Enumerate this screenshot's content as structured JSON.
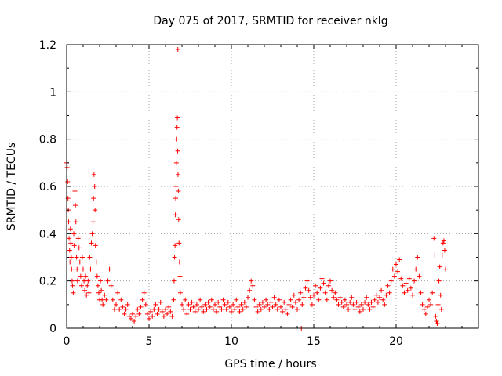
{
  "chart_data": {
    "type": "scatter",
    "title": "Day 075 of 2017, SRMTID for receiver nklg",
    "xlabel": "GPS time / hours",
    "ylabel": "SRMTID / TECUs",
    "xlim": [
      0,
      25
    ],
    "ylim": [
      0,
      1.2
    ],
    "grid": true,
    "marker": "+",
    "color": "#ff0000",
    "x_ticks": [
      0,
      5,
      10,
      15,
      20
    ],
    "x_tick_labels": [
      "0",
      "5",
      "10",
      "15",
      "20"
    ],
    "y_ticks": [
      0,
      0.2,
      0.4,
      0.6,
      0.8,
      1,
      1.2
    ],
    "y_tick_labels": [
      "0",
      "0.2",
      "0.4",
      "0.6",
      "0.8",
      "1",
      "1.2"
    ],
    "series": [
      {
        "name": "SRMTID",
        "points": [
          [
            0.0,
            0.7
          ],
          [
            0.03,
            0.68
          ],
          [
            0.06,
            0.62
          ],
          [
            0.08,
            0.55
          ],
          [
            0.1,
            0.5
          ],
          [
            0.12,
            0.45
          ],
          [
            0.15,
            0.38
          ],
          [
            0.18,
            0.33
          ],
          [
            0.2,
            0.28
          ],
          [
            0.23,
            0.42
          ],
          [
            0.25,
            0.36
          ],
          [
            0.28,
            0.3
          ],
          [
            0.3,
            0.25
          ],
          [
            0.33,
            0.2
          ],
          [
            0.36,
            0.18
          ],
          [
            0.4,
            0.15
          ],
          [
            0.43,
            0.4
          ],
          [
            0.46,
            0.35
          ],
          [
            0.5,
            0.58
          ],
          [
            0.53,
            0.52
          ],
          [
            0.56,
            0.45
          ],
          [
            0.6,
            0.3
          ],
          [
            0.63,
            0.25
          ],
          [
            0.66,
            0.2
          ],
          [
            0.7,
            0.38
          ],
          [
            0.75,
            0.34
          ],
          [
            0.8,
            0.28
          ],
          [
            0.85,
            0.22
          ],
          [
            0.9,
            0.18
          ],
          [
            0.95,
            0.3
          ],
          [
            1.0,
            0.25
          ],
          [
            1.05,
            0.2
          ],
          [
            1.1,
            0.16
          ],
          [
            1.15,
            0.22
          ],
          [
            1.2,
            0.14
          ],
          [
            1.25,
            0.18
          ],
          [
            1.3,
            0.2
          ],
          [
            1.35,
            0.15
          ],
          [
            1.4,
            0.3
          ],
          [
            1.45,
            0.25
          ],
          [
            1.5,
            0.36
          ],
          [
            1.55,
            0.4
          ],
          [
            1.6,
            0.45
          ],
          [
            1.63,
            0.55
          ],
          [
            1.66,
            0.65
          ],
          [
            1.7,
            0.6
          ],
          [
            1.72,
            0.5
          ],
          [
            1.75,
            0.35
          ],
          [
            1.8,
            0.28
          ],
          [
            1.85,
            0.22
          ],
          [
            1.9,
            0.18
          ],
          [
            1.95,
            0.15
          ],
          [
            2.0,
            0.12
          ],
          [
            2.05,
            0.2
          ],
          [
            2.1,
            0.16
          ],
          [
            2.15,
            0.12
          ],
          [
            2.2,
            0.1
          ],
          [
            2.3,
            0.14
          ],
          [
            2.4,
            0.12
          ],
          [
            2.5,
            0.2
          ],
          [
            2.6,
            0.25
          ],
          [
            2.7,
            0.18
          ],
          [
            2.8,
            0.12
          ],
          [
            2.9,
            0.08
          ],
          [
            3.0,
            0.1
          ],
          [
            3.1,
            0.15
          ],
          [
            3.2,
            0.08
          ],
          [
            3.3,
            0.12
          ],
          [
            3.4,
            0.09
          ],
          [
            3.5,
            0.06
          ],
          [
            3.6,
            0.08
          ],
          [
            3.7,
            0.1
          ],
          [
            3.8,
            0.05
          ],
          [
            3.9,
            0.04
          ],
          [
            4.0,
            0.06
          ],
          [
            4.1,
            0.03
          ],
          [
            4.2,
            0.05
          ],
          [
            4.3,
            0.08
          ],
          [
            4.4,
            0.06
          ],
          [
            4.5,
            0.09
          ],
          [
            4.6,
            0.12
          ],
          [
            4.7,
            0.15
          ],
          [
            4.8,
            0.1
          ],
          [
            4.9,
            0.06
          ],
          [
            5.0,
            0.04
          ],
          [
            5.1,
            0.07
          ],
          [
            5.2,
            0.05
          ],
          [
            5.3,
            0.08
          ],
          [
            5.4,
            0.1
          ],
          [
            5.5,
            0.06
          ],
          [
            5.6,
            0.08
          ],
          [
            5.7,
            0.11
          ],
          [
            5.8,
            0.07
          ],
          [
            5.9,
            0.05
          ],
          [
            6.0,
            0.08
          ],
          [
            6.1,
            0.06
          ],
          [
            6.2,
            0.09
          ],
          [
            6.3,
            0.07
          ],
          [
            6.4,
            0.05
          ],
          [
            6.5,
            0.12
          ],
          [
            6.52,
            0.2
          ],
          [
            6.55,
            0.3
          ],
          [
            6.58,
            0.35
          ],
          [
            6.6,
            0.48
          ],
          [
            6.62,
            0.55
          ],
          [
            6.64,
            0.6
          ],
          [
            6.66,
            0.7
          ],
          [
            6.68,
            0.8
          ],
          [
            6.7,
            0.85
          ],
          [
            6.72,
            0.89
          ],
          [
            6.74,
            0.75
          ],
          [
            6.75,
            1.18
          ],
          [
            6.76,
            0.65
          ],
          [
            6.78,
            0.58
          ],
          [
            6.8,
            0.46
          ],
          [
            6.82,
            0.36
          ],
          [
            6.85,
            0.28
          ],
          [
            6.88,
            0.22
          ],
          [
            6.9,
            0.15
          ],
          [
            7.0,
            0.1
          ],
          [
            7.1,
            0.08
          ],
          [
            7.2,
            0.12
          ],
          [
            7.3,
            0.06
          ],
          [
            7.4,
            0.1
          ],
          [
            7.5,
            0.08
          ],
          [
            7.6,
            0.11
          ],
          [
            7.7,
            0.09
          ],
          [
            7.8,
            0.07
          ],
          [
            7.9,
            0.1
          ],
          [
            8.0,
            0.08
          ],
          [
            8.1,
            0.12
          ],
          [
            8.2,
            0.09
          ],
          [
            8.3,
            0.07
          ],
          [
            8.4,
            0.1
          ],
          [
            8.5,
            0.08
          ],
          [
            8.6,
            0.11
          ],
          [
            8.7,
            0.09
          ],
          [
            8.8,
            0.12
          ],
          [
            8.9,
            0.08
          ],
          [
            9.0,
            0.1
          ],
          [
            9.1,
            0.07
          ],
          [
            9.2,
            0.11
          ],
          [
            9.3,
            0.09
          ],
          [
            9.4,
            0.08
          ],
          [
            9.5,
            0.12
          ],
          [
            9.6,
            0.1
          ],
          [
            9.7,
            0.08
          ],
          [
            9.8,
            0.11
          ],
          [
            9.9,
            0.09
          ],
          [
            10.0,
            0.07
          ],
          [
            10.1,
            0.1
          ],
          [
            10.2,
            0.08
          ],
          [
            10.3,
            0.12
          ],
          [
            10.4,
            0.09
          ],
          [
            10.5,
            0.07
          ],
          [
            10.6,
            0.1
          ],
          [
            10.7,
            0.08
          ],
          [
            10.8,
            0.11
          ],
          [
            10.9,
            0.09
          ],
          [
            11.0,
            0.13
          ],
          [
            11.1,
            0.16
          ],
          [
            11.2,
            0.2
          ],
          [
            11.3,
            0.18
          ],
          [
            11.4,
            0.12
          ],
          [
            11.5,
            0.09
          ],
          [
            11.6,
            0.07
          ],
          [
            11.7,
            0.1
          ],
          [
            11.8,
            0.08
          ],
          [
            11.9,
            0.11
          ],
          [
            12.0,
            0.09
          ],
          [
            12.1,
            0.12
          ],
          [
            12.2,
            0.1
          ],
          [
            12.3,
            0.08
          ],
          [
            12.4,
            0.11
          ],
          [
            12.5,
            0.09
          ],
          [
            12.6,
            0.13
          ],
          [
            12.7,
            0.1
          ],
          [
            12.8,
            0.08
          ],
          [
            12.9,
            0.12
          ],
          [
            13.0,
            0.09
          ],
          [
            13.1,
            0.07
          ],
          [
            13.2,
            0.11
          ],
          [
            13.3,
            0.08
          ],
          [
            13.4,
            0.06
          ],
          [
            13.5,
            0.1
          ],
          [
            13.6,
            0.12
          ],
          [
            13.7,
            0.09
          ],
          [
            13.8,
            0.14
          ],
          [
            13.9,
            0.11
          ],
          [
            14.0,
            0.08
          ],
          [
            14.1,
            0.12
          ],
          [
            14.2,
            0.15
          ],
          [
            14.25,
            0.0
          ],
          [
            14.3,
            0.1
          ],
          [
            14.4,
            0.13
          ],
          [
            14.5,
            0.17
          ],
          [
            14.6,
            0.2
          ],
          [
            14.7,
            0.16
          ],
          [
            14.8,
            0.13
          ],
          [
            14.9,
            0.1
          ],
          [
            15.0,
            0.14
          ],
          [
            15.1,
            0.18
          ],
          [
            15.2,
            0.15
          ],
          [
            15.3,
            0.12
          ],
          [
            15.4,
            0.17
          ],
          [
            15.5,
            0.21
          ],
          [
            15.6,
            0.19
          ],
          [
            15.7,
            0.15
          ],
          [
            15.8,
            0.12
          ],
          [
            15.9,
            0.18
          ],
          [
            16.0,
            0.2
          ],
          [
            16.1,
            0.16
          ],
          [
            16.2,
            0.13
          ],
          [
            16.3,
            0.15
          ],
          [
            16.4,
            0.12
          ],
          [
            16.5,
            0.1
          ],
          [
            16.6,
            0.13
          ],
          [
            16.7,
            0.11
          ],
          [
            16.8,
            0.09
          ],
          [
            16.9,
            0.12
          ],
          [
            17.0,
            0.1
          ],
          [
            17.1,
            0.08
          ],
          [
            17.2,
            0.11
          ],
          [
            17.3,
            0.13
          ],
          [
            17.4,
            0.1
          ],
          [
            17.5,
            0.08
          ],
          [
            17.6,
            0.11
          ],
          [
            17.7,
            0.09
          ],
          [
            17.8,
            0.07
          ],
          [
            17.9,
            0.1
          ],
          [
            18.0,
            0.08
          ],
          [
            18.1,
            0.11
          ],
          [
            18.2,
            0.13
          ],
          [
            18.3,
            0.1
          ],
          [
            18.4,
            0.08
          ],
          [
            18.5,
            0.11
          ],
          [
            18.6,
            0.09
          ],
          [
            18.7,
            0.12
          ],
          [
            18.8,
            0.14
          ],
          [
            18.9,
            0.11
          ],
          [
            19.0,
            0.13
          ],
          [
            19.1,
            0.16
          ],
          [
            19.2,
            0.12
          ],
          [
            19.3,
            0.1
          ],
          [
            19.4,
            0.14
          ],
          [
            19.5,
            0.18
          ],
          [
            19.6,
            0.15
          ],
          [
            19.7,
            0.2
          ],
          [
            19.8,
            0.25
          ],
          [
            19.9,
            0.22
          ],
          [
            20.0,
            0.27
          ],
          [
            20.1,
            0.24
          ],
          [
            20.2,
            0.29
          ],
          [
            20.3,
            0.21
          ],
          [
            20.4,
            0.18
          ],
          [
            20.5,
            0.15
          ],
          [
            20.6,
            0.19
          ],
          [
            20.7,
            0.16
          ],
          [
            20.8,
            0.21
          ],
          [
            20.9,
            0.17
          ],
          [
            21.0,
            0.14
          ],
          [
            21.1,
            0.2
          ],
          [
            21.2,
            0.25
          ],
          [
            21.3,
            0.3
          ],
          [
            21.4,
            0.22
          ],
          [
            21.5,
            0.15
          ],
          [
            21.6,
            0.1
          ],
          [
            21.7,
            0.08
          ],
          [
            21.8,
            0.06
          ],
          [
            21.9,
            0.09
          ],
          [
            22.0,
            0.12
          ],
          [
            22.1,
            0.1
          ],
          [
            22.2,
            0.15
          ],
          [
            22.3,
            0.38
          ],
          [
            22.35,
            0.31
          ],
          [
            22.4,
            0.05
          ],
          [
            22.45,
            0.03
          ],
          [
            22.5,
            0.02
          ],
          [
            22.55,
            0.1
          ],
          [
            22.6,
            0.2
          ],
          [
            22.65,
            0.26
          ],
          [
            22.7,
            0.14
          ],
          [
            22.75,
            0.08
          ],
          [
            22.8,
            0.31
          ],
          [
            22.85,
            0.36
          ],
          [
            22.9,
            0.37
          ],
          [
            22.95,
            0.33
          ],
          [
            23.0,
            0.25
          ]
        ]
      }
    ]
  }
}
